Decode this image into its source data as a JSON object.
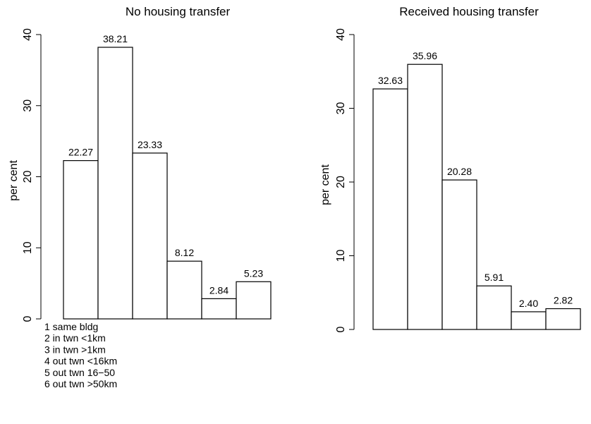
{
  "chart_data": [
    {
      "type": "bar",
      "title": "No housing transfer",
      "ylabel": "per cent",
      "categories": [
        "1",
        "2",
        "3",
        "4",
        "5",
        "6"
      ],
      "values": [
        22.27,
        38.21,
        23.33,
        8.12,
        2.84,
        5.23
      ],
      "value_labels": [
        "22.27",
        "38.21",
        "23.33",
        "8.12",
        "2.84",
        "5.23"
      ],
      "ylim": [
        0,
        40
      ],
      "yticks": [
        "0",
        "10",
        "20",
        "30",
        "40"
      ],
      "grid": false
    },
    {
      "type": "bar",
      "title": "Received housing transfer",
      "ylabel": "per cent",
      "categories": [
        "1",
        "2",
        "3",
        "4",
        "5",
        "6"
      ],
      "values": [
        32.63,
        35.96,
        20.28,
        5.91,
        2.4,
        2.82
      ],
      "value_labels": [
        "32.63",
        "35.96",
        "20.28",
        "5.91",
        "2.40",
        "2.82"
      ],
      "ylim": [
        0,
        40
      ],
      "yticks": [
        "0",
        "10",
        "20",
        "30",
        "40"
      ],
      "grid": false
    }
  ],
  "category_legend": [
    "1 same bldg",
    "2 in twn <1km",
    "3 in twn >1km",
    "4 out twn <16km",
    "5 out twn 16−50",
    "6 out twn >50km"
  ],
  "colors": {
    "bar_fill": "#ffffff",
    "bar_stroke": "#000000",
    "axis": "#000000"
  }
}
